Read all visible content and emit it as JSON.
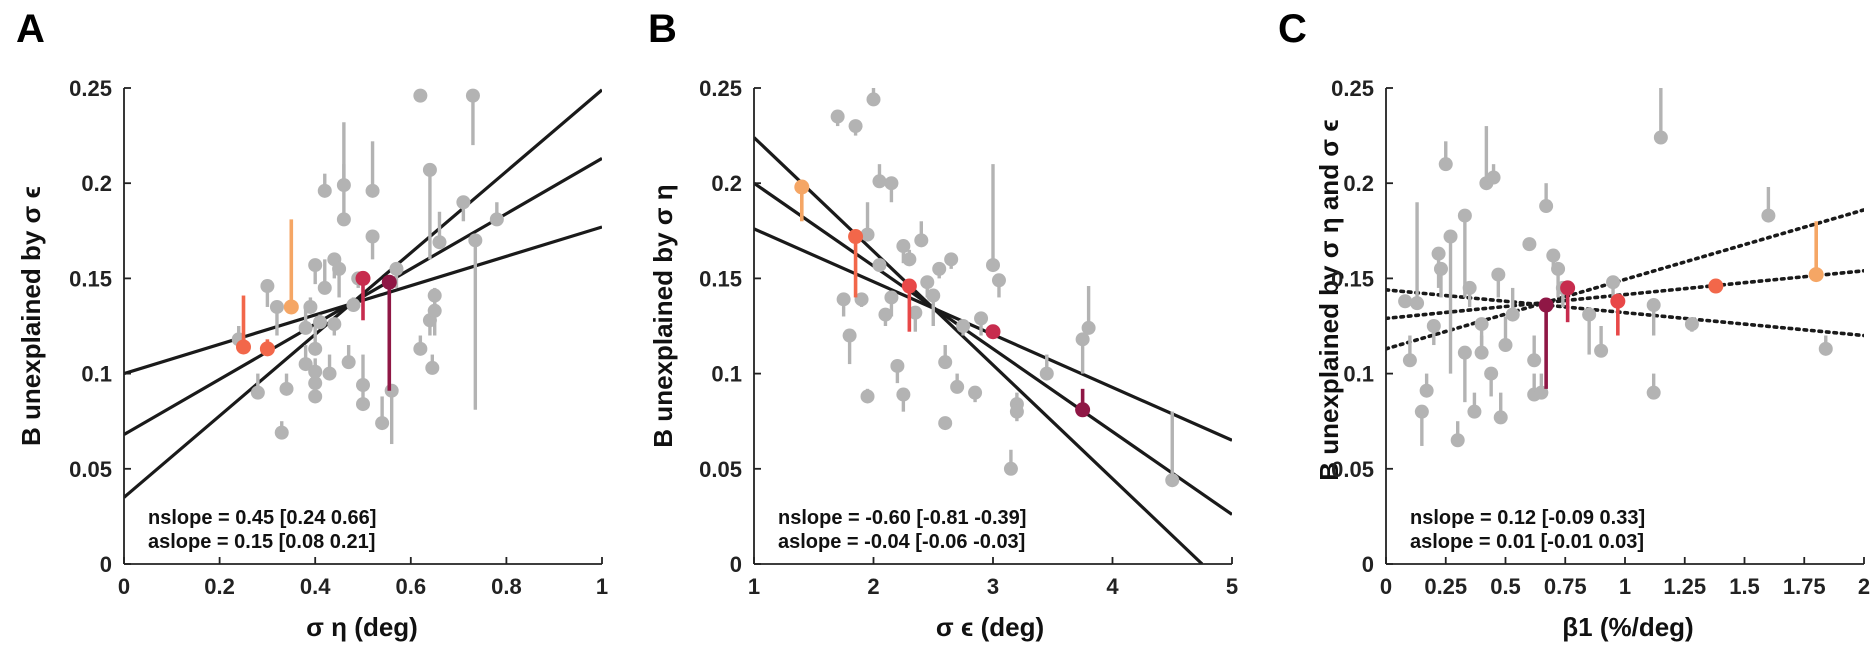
{
  "panels": [
    {
      "letter": "A",
      "ylabel": "B unexplained by σ ϵ",
      "xlabel": "σ η (deg)",
      "annotation_nslope": "nslope = 0.45 [0.24 0.66]",
      "annotation_aslope": "aslope = 0.15 [0.08 0.21]",
      "xticks": [
        "0",
        "0.2",
        "0.4",
        "0.6",
        "0.8",
        "1"
      ],
      "yticks": [
        "0",
        "0.05",
        "0.1",
        "0.15",
        "0.2",
        "0.25"
      ]
    },
    {
      "letter": "B",
      "ylabel": "B unexplained by σ η",
      "xlabel": "σ ϵ (deg)",
      "annotation_nslope": "nslope = -0.60 [-0.81 -0.39]",
      "annotation_aslope": "aslope = -0.04 [-0.06 -0.03]",
      "xticks": [
        "1",
        "2",
        "3",
        "4",
        "5"
      ],
      "yticks": [
        "0",
        "0.05",
        "0.1",
        "0.15",
        "0.2",
        "0.25"
      ]
    },
    {
      "letter": "C",
      "ylabel": "B unexplained by σ η and σ ϵ",
      "xlabel": "β1 (%/deg)",
      "annotation_nslope": "nslope = 0.12 [-0.09 0.33]",
      "annotation_aslope": "aslope = 0.01 [-0.01 0.03]",
      "xticks": [
        "0",
        "0.25",
        "0.5",
        "0.75",
        "1",
        "1.25",
        "1.5",
        "1.75",
        "2"
      ],
      "yticks": [
        "0",
        "0.05",
        "0.1",
        "0.15",
        "0.2",
        "0.25"
      ]
    }
  ],
  "chart_data": [
    {
      "type": "scatter",
      "title": "",
      "xlabel": "σ η (deg)",
      "ylabel": "B unexplained by σ ϵ",
      "xlim": [
        0,
        1
      ],
      "ylim": [
        0,
        0.25
      ],
      "grid": false,
      "colors": {
        "gray": "#b3b3b3",
        "line": "#1a1a1a"
      },
      "lines": [
        {
          "style": "solid",
          "points": [
            [
              0,
              0.1
            ],
            [
              1,
              0.177
            ]
          ]
        },
        {
          "style": "solid",
          "points": [
            [
              0,
              0.068
            ],
            [
              1,
              0.213
            ]
          ]
        },
        {
          "style": "solid",
          "points": [
            [
              0,
              0.035
            ],
            [
              1,
              0.249
            ]
          ]
        }
      ],
      "highlight_points": [
        {
          "x": 0.25,
          "y": 0.114,
          "err_to": 0.141,
          "color": "#f2674a"
        },
        {
          "x": 0.3,
          "y": 0.113,
          "err_to": 0.118,
          "color": "#f2674a"
        },
        {
          "x": 0.35,
          "y": 0.135,
          "err_to": 0.181,
          "color": "#f5a665"
        },
        {
          "x": 0.5,
          "y": 0.15,
          "err_to": 0.128,
          "color": "#c72c4e"
        },
        {
          "x": 0.555,
          "y": 0.148,
          "err_to": 0.091,
          "color": "#8f1745"
        }
      ],
      "points": [
        {
          "x": 0.24,
          "y": 0.118,
          "err_to": 0.125
        },
        {
          "x": 0.28,
          "y": 0.09,
          "err_to": 0.1
        },
        {
          "x": 0.3,
          "y": 0.146,
          "err_to": 0.135
        },
        {
          "x": 0.32,
          "y": 0.135,
          "err_to": 0.12
        },
        {
          "x": 0.33,
          "y": 0.069,
          "err_to": 0.075
        },
        {
          "x": 0.34,
          "y": 0.092,
          "err_to": 0.1
        },
        {
          "x": 0.38,
          "y": 0.124,
          "err_to": 0.135
        },
        {
          "x": 0.38,
          "y": 0.105,
          "err_to": 0.115
        },
        {
          "x": 0.39,
          "y": 0.135,
          "err_to": 0.14
        },
        {
          "x": 0.4,
          "y": 0.157,
          "err_to": 0.147
        },
        {
          "x": 0.4,
          "y": 0.113,
          "err_to": 0.125
        },
        {
          "x": 0.4,
          "y": 0.101,
          "err_to": 0.108
        },
        {
          "x": 0.4,
          "y": 0.095,
          "err_to": 0.105
        },
        {
          "x": 0.4,
          "y": 0.088,
          "err_to": 0.095
        },
        {
          "x": 0.41,
          "y": 0.127,
          "err_to": 0.131
        },
        {
          "x": 0.42,
          "y": 0.145,
          "err_to": 0.16
        },
        {
          "x": 0.42,
          "y": 0.196,
          "err_to": 0.205
        },
        {
          "x": 0.43,
          "y": 0.1,
          "err_to": 0.11
        },
        {
          "x": 0.44,
          "y": 0.16,
          "err_to": 0.15
        },
        {
          "x": 0.44,
          "y": 0.126,
          "err_to": 0.12
        },
        {
          "x": 0.45,
          "y": 0.155,
          "err_to": 0.14
        },
        {
          "x": 0.46,
          "y": 0.181,
          "err_to": 0.232
        },
        {
          "x": 0.46,
          "y": 0.199,
          "err_to": 0.21
        },
        {
          "x": 0.47,
          "y": 0.106,
          "err_to": 0.115
        },
        {
          "x": 0.48,
          "y": 0.136,
          "err_to": 0.14
        },
        {
          "x": 0.49,
          "y": 0.15,
          "err_to": 0.145
        },
        {
          "x": 0.5,
          "y": 0.094,
          "err_to": 0.11
        },
        {
          "x": 0.5,
          "y": 0.084,
          "err_to": 0.091
        },
        {
          "x": 0.52,
          "y": 0.196,
          "err_to": 0.222
        },
        {
          "x": 0.52,
          "y": 0.172,
          "err_to": 0.16
        },
        {
          "x": 0.54,
          "y": 0.074,
          "err_to": 0.088
        },
        {
          "x": 0.56,
          "y": 0.091,
          "err_to": 0.063
        },
        {
          "x": 0.57,
          "y": 0.155,
          "err_to": 0.145
        },
        {
          "x": 0.62,
          "y": 0.246,
          "err_to": 0.245
        },
        {
          "x": 0.62,
          "y": 0.113,
          "err_to": 0.12
        },
        {
          "x": 0.64,
          "y": 0.207,
          "err_to": 0.16
        },
        {
          "x": 0.64,
          "y": 0.128,
          "err_to": 0.12
        },
        {
          "x": 0.645,
          "y": 0.103,
          "err_to": 0.11
        },
        {
          "x": 0.65,
          "y": 0.141,
          "err_to": 0.12
        },
        {
          "x": 0.65,
          "y": 0.133,
          "err_to": 0.145
        },
        {
          "x": 0.66,
          "y": 0.169,
          "err_to": 0.185
        },
        {
          "x": 0.71,
          "y": 0.19,
          "err_to": 0.18
        },
        {
          "x": 0.73,
          "y": 0.246,
          "err_to": 0.22
        },
        {
          "x": 0.735,
          "y": 0.17,
          "err_to": 0.081
        },
        {
          "x": 0.78,
          "y": 0.181,
          "err_to": 0.19
        }
      ]
    },
    {
      "type": "scatter",
      "title": "",
      "xlabel": "σ ϵ (deg)",
      "ylabel": "B unexplained by σ η",
      "xlim": [
        1,
        5
      ],
      "ylim": [
        0,
        0.25
      ],
      "grid": false,
      "colors": {
        "gray": "#b3b3b3",
        "line": "#1a1a1a"
      },
      "lines": [
        {
          "style": "solid",
          "points": [
            [
              1,
              0.176
            ],
            [
              5,
              0.065
            ]
          ]
        },
        {
          "style": "solid",
          "points": [
            [
              1,
              0.2
            ],
            [
              5,
              0.026
            ]
          ]
        },
        {
          "style": "solid",
          "points": [
            [
              1,
              0.224
            ],
            [
              4.75,
              0
            ]
          ]
        }
      ],
      "highlight_points": [
        {
          "x": 1.4,
          "y": 0.198,
          "err_to": 0.18,
          "color": "#f5a665"
        },
        {
          "x": 1.85,
          "y": 0.172,
          "err_to": 0.14,
          "color": "#f2674a"
        },
        {
          "x": 2.3,
          "y": 0.146,
          "err_to": 0.122,
          "color": "#e84848"
        },
        {
          "x": 3.0,
          "y": 0.122,
          "err_to": 0.124,
          "color": "#c72c4e"
        },
        {
          "x": 3.75,
          "y": 0.081,
          "err_to": 0.092,
          "color": "#8f1745"
        }
      ],
      "points": [
        {
          "x": 1.7,
          "y": 0.235,
          "err_to": 0.23
        },
        {
          "x": 1.75,
          "y": 0.139,
          "err_to": 0.13
        },
        {
          "x": 1.8,
          "y": 0.12,
          "err_to": 0.105
        },
        {
          "x": 1.85,
          "y": 0.23,
          "err_to": 0.225
        },
        {
          "x": 1.9,
          "y": 0.139,
          "err_to": 0.135
        },
        {
          "x": 1.95,
          "y": 0.173,
          "err_to": 0.19
        },
        {
          "x": 1.95,
          "y": 0.088,
          "err_to": 0.092
        },
        {
          "x": 2.0,
          "y": 0.244,
          "err_to": 0.25
        },
        {
          "x": 2.05,
          "y": 0.201,
          "err_to": 0.21
        },
        {
          "x": 2.05,
          "y": 0.157,
          "err_to": 0.16
        },
        {
          "x": 2.1,
          "y": 0.131,
          "err_to": 0.125
        },
        {
          "x": 2.15,
          "y": 0.2,
          "err_to": 0.19
        },
        {
          "x": 2.15,
          "y": 0.14,
          "err_to": 0.13
        },
        {
          "x": 2.2,
          "y": 0.104,
          "err_to": 0.095
        },
        {
          "x": 2.25,
          "y": 0.167,
          "err_to": 0.158
        },
        {
          "x": 2.25,
          "y": 0.089,
          "err_to": 0.08
        },
        {
          "x": 2.3,
          "y": 0.16,
          "err_to": 0.165
        },
        {
          "x": 2.35,
          "y": 0.132,
          "err_to": 0.122
        },
        {
          "x": 2.4,
          "y": 0.17,
          "err_to": 0.18
        },
        {
          "x": 2.45,
          "y": 0.148,
          "err_to": 0.14
        },
        {
          "x": 2.5,
          "y": 0.141,
          "err_to": 0.125
        },
        {
          "x": 2.55,
          "y": 0.155,
          "err_to": 0.15
        },
        {
          "x": 2.6,
          "y": 0.106,
          "err_to": 0.115
        },
        {
          "x": 2.6,
          "y": 0.074,
          "err_to": 0.076
        },
        {
          "x": 2.65,
          "y": 0.16,
          "err_to": 0.155
        },
        {
          "x": 2.7,
          "y": 0.093,
          "err_to": 0.1
        },
        {
          "x": 2.75,
          "y": 0.125,
          "err_to": 0.12
        },
        {
          "x": 2.85,
          "y": 0.09,
          "err_to": 0.085
        },
        {
          "x": 2.9,
          "y": 0.129,
          "err_to": 0.12
        },
        {
          "x": 3.0,
          "y": 0.157,
          "err_to": 0.21
        },
        {
          "x": 3.05,
          "y": 0.149,
          "err_to": 0.14
        },
        {
          "x": 3.15,
          "y": 0.05,
          "err_to": 0.06
        },
        {
          "x": 3.2,
          "y": 0.084,
          "err_to": 0.09
        },
        {
          "x": 3.2,
          "y": 0.08,
          "err_to": 0.075
        },
        {
          "x": 3.45,
          "y": 0.1,
          "err_to": 0.11
        },
        {
          "x": 3.75,
          "y": 0.118,
          "err_to": 0.1
        },
        {
          "x": 3.8,
          "y": 0.124,
          "err_to": 0.146
        },
        {
          "x": 4.5,
          "y": 0.044,
          "err_to": 0.08
        }
      ]
    },
    {
      "type": "scatter",
      "title": "",
      "xlabel": "β1 (%/deg)",
      "ylabel": "B unexplained by σ η and σ ϵ",
      "xlim": [
        0,
        2
      ],
      "ylim": [
        0,
        0.25
      ],
      "grid": false,
      "colors": {
        "gray": "#b3b3b3",
        "line": "#1a1a1a"
      },
      "lines": [
        {
          "style": "dotted",
          "points": [
            [
              0,
              0.144
            ],
            [
              2,
              0.12
            ]
          ]
        },
        {
          "style": "dotted",
          "points": [
            [
              0,
              0.129
            ],
            [
              2,
              0.154
            ]
          ]
        },
        {
          "style": "dotted",
          "points": [
            [
              0,
              0.113
            ],
            [
              2,
              0.186
            ]
          ]
        }
      ],
      "highlight_points": [
        {
          "x": 0.67,
          "y": 0.136,
          "err_to": 0.092,
          "color": "#8f1745"
        },
        {
          "x": 0.76,
          "y": 0.145,
          "err_to": 0.127,
          "color": "#c72c4e"
        },
        {
          "x": 0.97,
          "y": 0.138,
          "err_to": 0.12,
          "color": "#e84848"
        },
        {
          "x": 1.38,
          "y": 0.146,
          "err_to": 0.143,
          "color": "#f2674a"
        },
        {
          "x": 1.8,
          "y": 0.152,
          "err_to": 0.18,
          "color": "#f5a665"
        }
      ],
      "points": [
        {
          "x": 0.08,
          "y": 0.138,
          "err_to": 0.14
        },
        {
          "x": 0.1,
          "y": 0.107,
          "err_to": 0.12
        },
        {
          "x": 0.13,
          "y": 0.137,
          "err_to": 0.19
        },
        {
          "x": 0.15,
          "y": 0.08,
          "err_to": 0.062
        },
        {
          "x": 0.17,
          "y": 0.091,
          "err_to": 0.1
        },
        {
          "x": 0.2,
          "y": 0.125,
          "err_to": 0.115
        },
        {
          "x": 0.22,
          "y": 0.163,
          "err_to": 0.145
        },
        {
          "x": 0.23,
          "y": 0.155,
          "err_to": 0.14
        },
        {
          "x": 0.25,
          "y": 0.21,
          "err_to": 0.222
        },
        {
          "x": 0.27,
          "y": 0.172,
          "err_to": 0.1
        },
        {
          "x": 0.3,
          "y": 0.065,
          "err_to": 0.075
        },
        {
          "x": 0.33,
          "y": 0.183,
          "err_to": 0.14
        },
        {
          "x": 0.33,
          "y": 0.111,
          "err_to": 0.085
        },
        {
          "x": 0.35,
          "y": 0.145,
          "err_to": 0.135
        },
        {
          "x": 0.37,
          "y": 0.08,
          "err_to": 0.09
        },
        {
          "x": 0.4,
          "y": 0.126,
          "err_to": 0.11
        },
        {
          "x": 0.4,
          "y": 0.111,
          "err_to": 0.12
        },
        {
          "x": 0.42,
          "y": 0.2,
          "err_to": 0.23
        },
        {
          "x": 0.44,
          "y": 0.1,
          "err_to": 0.088
        },
        {
          "x": 0.45,
          "y": 0.203,
          "err_to": 0.21
        },
        {
          "x": 0.47,
          "y": 0.152,
          "err_to": 0.14
        },
        {
          "x": 0.48,
          "y": 0.077,
          "err_to": 0.09
        },
        {
          "x": 0.5,
          "y": 0.115,
          "err_to": 0.13
        },
        {
          "x": 0.53,
          "y": 0.131,
          "err_to": 0.145
        },
        {
          "x": 0.6,
          "y": 0.168,
          "err_to": 0.165
        },
        {
          "x": 0.62,
          "y": 0.107,
          "err_to": 0.12
        },
        {
          "x": 0.62,
          "y": 0.089,
          "err_to": 0.1
        },
        {
          "x": 0.65,
          "y": 0.09,
          "err_to": 0.1
        },
        {
          "x": 0.67,
          "y": 0.188,
          "err_to": 0.2
        },
        {
          "x": 0.7,
          "y": 0.162,
          "err_to": 0.155
        },
        {
          "x": 0.72,
          "y": 0.155,
          "err_to": 0.14
        },
        {
          "x": 0.74,
          "y": 0.145,
          "err_to": 0.135
        },
        {
          "x": 0.85,
          "y": 0.131,
          "err_to": 0.11
        },
        {
          "x": 0.9,
          "y": 0.112,
          "err_to": 0.125
        },
        {
          "x": 0.95,
          "y": 0.148,
          "err_to": 0.14
        },
        {
          "x": 1.12,
          "y": 0.09,
          "err_to": 0.1
        },
        {
          "x": 1.12,
          "y": 0.136,
          "err_to": 0.12
        },
        {
          "x": 1.15,
          "y": 0.224,
          "err_to": 0.25
        },
        {
          "x": 1.28,
          "y": 0.126,
          "err_to": 0.122
        },
        {
          "x": 1.6,
          "y": 0.183,
          "err_to": 0.198
        },
        {
          "x": 1.84,
          "y": 0.113,
          "err_to": 0.12
        }
      ]
    }
  ]
}
